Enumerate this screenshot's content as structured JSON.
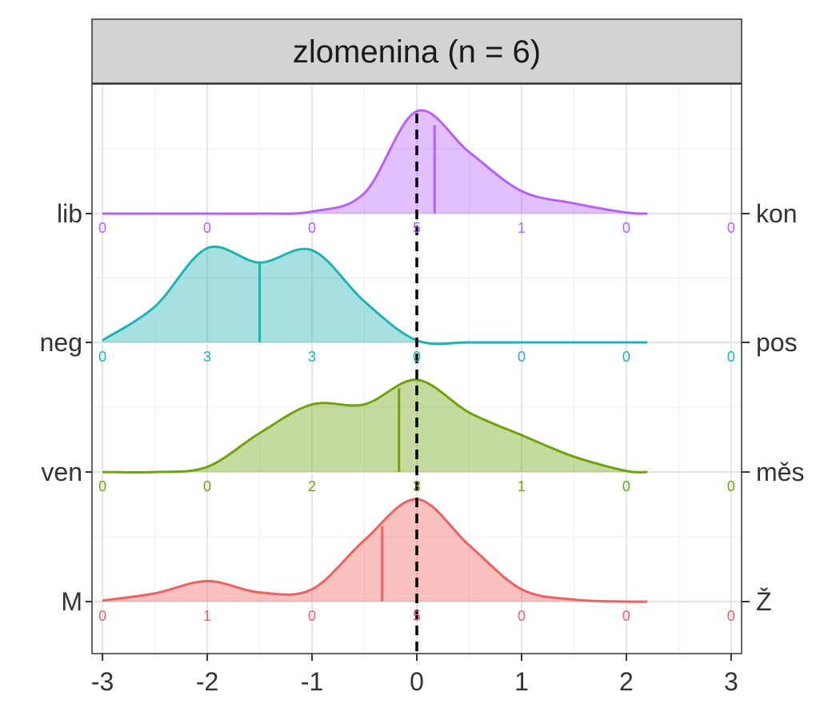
{
  "chart_data": {
    "type": "ridgeline-density",
    "facet_title": "zlomenina (n = 6)",
    "x_ticks": [
      "-3",
      "-2",
      "-1",
      "0",
      "1",
      "2",
      "3"
    ],
    "xlim": [
      -3.1,
      3.1
    ],
    "grid": true,
    "reference_line_x": 0,
    "x_levels": [
      -3,
      -2,
      -1,
      0,
      1,
      2,
      3
    ],
    "density_x": [
      -3.0,
      -2.5,
      -2.0,
      -1.5,
      -1.0,
      -0.5,
      0.0,
      0.5,
      1.0,
      1.5,
      2.0,
      2.2
    ],
    "series": [
      {
        "left_label": "M",
        "right_label": "Ž",
        "color": "#EE6160",
        "counts": [
          "0",
          "1",
          "0",
          "5",
          "0",
          "0",
          "0"
        ],
        "density": [
          0.01,
          0.08,
          0.2,
          0.09,
          0.12,
          0.6,
          1.0,
          0.55,
          0.12,
          0.02,
          0.0,
          0.0
        ],
        "mean": -0.33
      },
      {
        "left_label": "ven",
        "right_label": "měs",
        "color": "#6FA30E",
        "counts": [
          "0",
          "0",
          "2",
          "3",
          "1",
          "0",
          "0"
        ],
        "density": [
          0.0,
          0.0,
          0.05,
          0.38,
          0.66,
          0.66,
          0.9,
          0.58,
          0.36,
          0.15,
          0.01,
          0.0
        ],
        "mean": -0.17
      },
      {
        "left_label": "neg",
        "right_label": "pos",
        "color": "#20B2B4",
        "counts": [
          "0",
          "3",
          "3",
          "0",
          "0",
          "0",
          "0"
        ],
        "density": [
          0.02,
          0.35,
          0.92,
          0.78,
          0.9,
          0.4,
          0.02,
          0.0,
          0.0,
          0.0,
          0.0,
          0.0
        ],
        "mean": -1.5
      },
      {
        "left_label": "lib",
        "right_label": "kon",
        "color": "#B660FD",
        "counts": [
          "0",
          "0",
          "0",
          "5",
          "1",
          "0",
          "0"
        ],
        "density": [
          0.0,
          0.0,
          0.0,
          0.0,
          0.02,
          0.2,
          1.0,
          0.6,
          0.22,
          0.1,
          0.01,
          0.0
        ],
        "mean": 0.17
      }
    ]
  }
}
